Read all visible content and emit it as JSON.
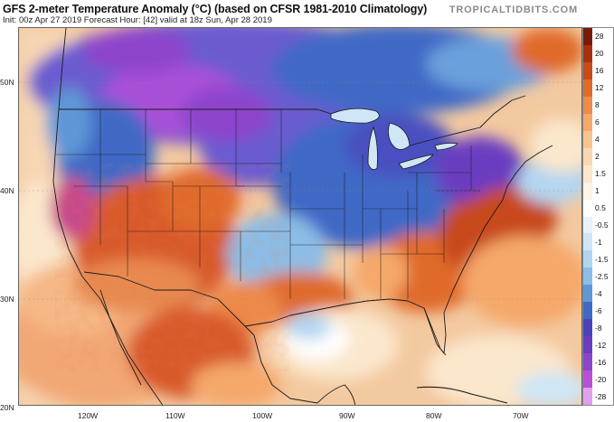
{
  "header": {
    "title": "GFS 2-meter Temperature Anomaly (°C) (based on CFSR 1981-2010 Climatology)",
    "subtitle": "Init: 00z Apr 27 2019   Forecast Hour: [42]   valid at 18z Sun, Apr 28 2019",
    "brand": "TROPICALTIDBITS.COM"
  },
  "axes": {
    "lat_labels": [
      "50N",
      "40N",
      "30N",
      "20N"
    ],
    "lon_labels": [
      "120W",
      "110W",
      "100W",
      "90W",
      "80W",
      "70W"
    ]
  },
  "colorbar": {
    "labels": [
      "28",
      "20",
      "16",
      "12",
      "8",
      "6",
      "4",
      "2",
      "1.5",
      "1",
      "0.5",
      "-0.5",
      "-1",
      "-1.5",
      "-2.5",
      "-4",
      "-6",
      "-8",
      "-12",
      "-16",
      "-20",
      "-28"
    ],
    "colors": [
      "#7a1a08",
      "#a8300c",
      "#c84a1a",
      "#e06a2c",
      "#ee8a4a",
      "#f5a86a",
      "#f8c48e",
      "#f9d8b0",
      "#fbe7cc",
      "#fdf3e6",
      "#ffffff",
      "#e6f3fb",
      "#cfe6f6",
      "#b3d6f0",
      "#8cbde6",
      "#5f97d6",
      "#3f69c6",
      "#4a44b8",
      "#6a3cc0",
      "#8d44cc",
      "#b84fd8",
      "#e0a0ec"
    ]
  }
}
